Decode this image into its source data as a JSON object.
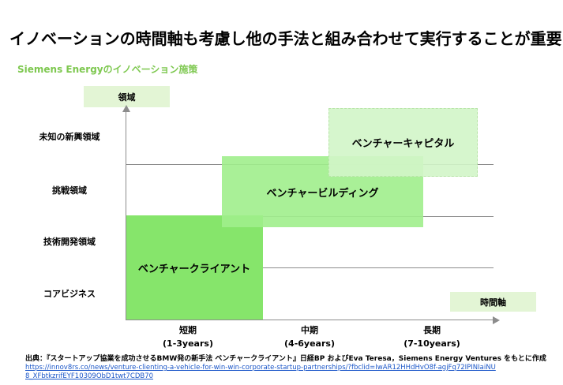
{
  "title": "イノベーションの時間軸も考慮し他の手法と組み合わせて実行することが重要",
  "subtitle": "Siemens Energyのイノベーション施策",
  "axes": {
    "y_title": "領域",
    "x_title": "時間軸",
    "y_levels": [
      "未知の新興領域",
      "挑戦領域",
      "技術開発領域",
      "コアビジネス"
    ],
    "x_levels": [
      {
        "label": "短期",
        "range": "(1-3years)"
      },
      {
        "label": "中期",
        "range": "(4-6years)"
      },
      {
        "label": "長期",
        "range": "(7-10years)"
      }
    ]
  },
  "blocks": {
    "client": "ベンチャークライアント",
    "building": "ベンチャービルディング",
    "capital": "ベンチャーキャピタル"
  },
  "source": {
    "text": "出典：『スタートアップ協業を成功させるBMW発の新手法 ベンチャークライアント』日経BP およびEva Teresa，Siemens Energy Ventures をもとに作成",
    "url": "https://innov8rs.co/news/venture-clienting-a-vehicle-for-win-win-corporate-startup-partnerships/?fbclid=IwAR12HHdHvO8f-agjFq72IPINIaiNU8_XFbtkzrifEYF10309ObD1twt7CDB70"
  },
  "colors": {
    "accent": "#7ec850",
    "client": "#86e56b",
    "building": "#a0ee8c",
    "capital": "#d2f5c8",
    "axis_box": "#e3f5d5",
    "link": "#1a56c8"
  }
}
